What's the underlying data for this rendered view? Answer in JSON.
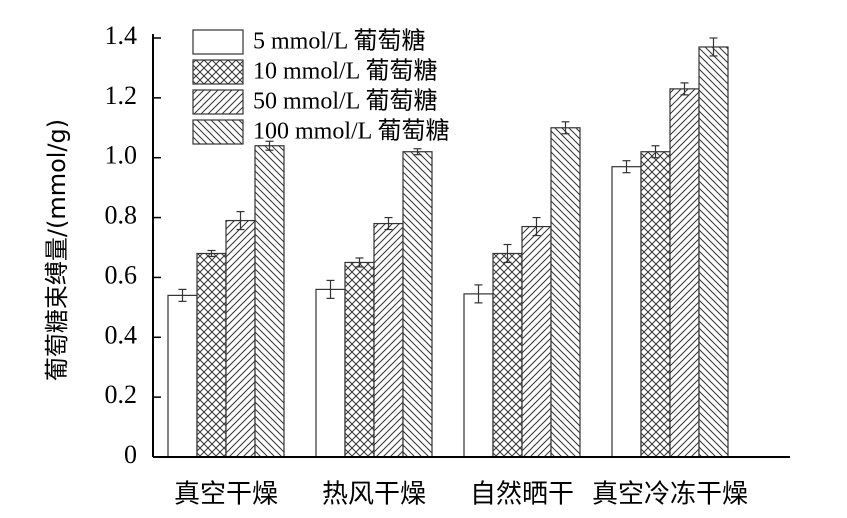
{
  "chart_data": {
    "type": "bar",
    "title": "",
    "xlabel": "",
    "ylabel": "葡萄糖束缚量/(mmol/g)",
    "ylim": [
      0,
      1.4
    ],
    "yticks": [
      "0",
      "0.2",
      "0.4",
      "0.6",
      "0.8",
      "1.0",
      "1.2",
      "1.4"
    ],
    "categories": [
      "真空干燥",
      "热风干燥",
      "自然晒干",
      "真空冷冻干燥"
    ],
    "legend_position": "top-left",
    "series": [
      {
        "name": "5 mmol/L 葡萄糖",
        "pattern": "empty",
        "values": [
          0.54,
          0.56,
          0.545,
          0.97
        ],
        "errors": [
          0.02,
          0.03,
          0.03,
          0.02
        ]
      },
      {
        "name": "10 mmol/L 葡萄糖",
        "pattern": "crosshatch",
        "values": [
          0.68,
          0.65,
          0.68,
          1.02
        ],
        "errors": [
          0.01,
          0.015,
          0.03,
          0.02
        ]
      },
      {
        "name": "50 mmol/L 葡萄糖",
        "pattern": "forward-diagonal",
        "values": [
          0.79,
          0.78,
          0.77,
          1.23
        ],
        "errors": [
          0.03,
          0.02,
          0.03,
          0.02
        ]
      },
      {
        "name": "100 mmol/L 葡萄糖",
        "pattern": "backward-diagonal",
        "values": [
          1.04,
          1.02,
          1.1,
          1.37
        ],
        "errors": [
          0.015,
          0.01,
          0.02,
          0.03
        ]
      }
    ]
  }
}
